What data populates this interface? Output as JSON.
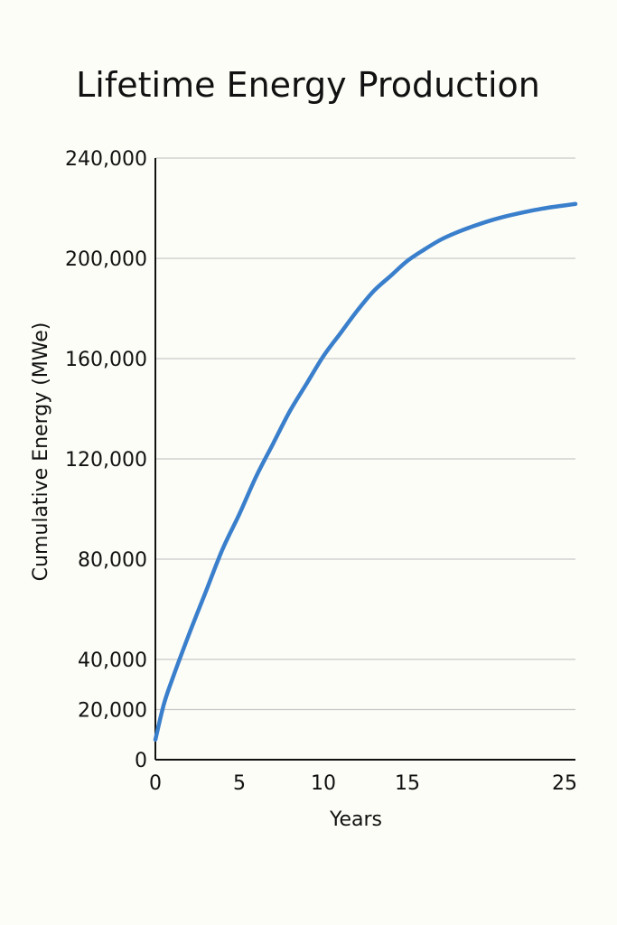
{
  "chart_data": {
    "type": "line",
    "title": "Lifetime Energy Production",
    "xlabel": "Years",
    "ylabel": "Cumulative Energy (MWe)",
    "xlim": [
      0,
      25
    ],
    "ylim": [
      0,
      240000
    ],
    "x_ticks": [
      0,
      5,
      10,
      15,
      25
    ],
    "x_tick_labels": [
      "0",
      "5",
      "10",
      "15",
      "25"
    ],
    "y_ticks": [
      0,
      20000,
      40000,
      80000,
      120000,
      160000,
      200000,
      240000
    ],
    "y_tick_labels": [
      "0",
      "20,000",
      "40,000",
      "80,000",
      "120,000",
      "160,000",
      "200,000",
      "240,000"
    ],
    "grid": true,
    "series": [
      {
        "color": "#3a7fcc",
        "x": [
          0,
          0.5,
          1,
          2,
          3,
          4,
          5,
          6,
          7,
          8,
          9,
          10,
          11,
          12,
          13,
          14,
          15,
          16,
          17,
          18,
          19,
          20,
          21,
          22,
          23,
          24,
          25
        ],
        "y": [
          8000,
          22000,
          32000,
          50000,
          67000,
          84000,
          98000,
          113000,
          126000,
          139000,
          150000,
          161000,
          170000,
          179000,
          187000,
          193000,
          199000,
          203500,
          207500,
          210500,
          213000,
          215200,
          217000,
          218500,
          219800,
          220800,
          221700
        ]
      }
    ]
  }
}
